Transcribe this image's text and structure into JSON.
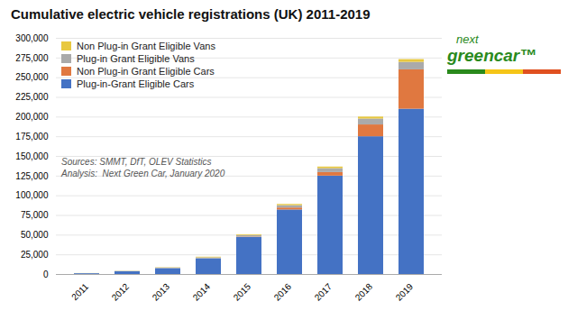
{
  "chart_data": {
    "type": "bar",
    "stacked": true,
    "title": "Cumulative electric vehicle registrations (UK) 2011-2019",
    "categories": [
      "2011",
      "2012",
      "2013",
      "2014",
      "2015",
      "2016",
      "2017",
      "2018",
      "2019"
    ],
    "series": [
      {
        "name": "Plug-in-Grant Eligible Cars",
        "color": "#4472C4",
        "values": [
          1000,
          3500,
          7500,
          20000,
          47000,
          82000,
          125000,
          175000,
          210000
        ]
      },
      {
        "name": "Non Plug-in Grant Eligible Cars",
        "color": "#E07840",
        "values": [
          0,
          0,
          0,
          0,
          500,
          2500,
          4500,
          15000,
          50000
        ]
      },
      {
        "name": "Plug-in Grant Eligible Vans",
        "color": "#AAAAAA",
        "values": [
          150,
          400,
          700,
          1200,
          2000,
          3000,
          5000,
          7500,
          9500
        ]
      },
      {
        "name": "Non Plug-in Grant Eligible Vans",
        "color": "#E8C840",
        "values": [
          100,
          200,
          400,
          800,
          1000,
          1500,
          2000,
          2500,
          3500
        ]
      }
    ],
    "ylim": [
      0,
      300000
    ],
    "yticks": [
      0,
      {
        "value": 25000,
        "label": "25,000"
      },
      {
        "value": 50000,
        "label": "50,000"
      },
      {
        "value": 75000,
        "label": "75,000"
      },
      {
        "value": 100000,
        "label": "100,000"
      },
      {
        "value": 125000,
        "label": "125,000"
      },
      {
        "value": 150000,
        "label": "150,000"
      },
      {
        "value": 175000,
        "label": "175,000"
      },
      {
        "value": 200000,
        "label": "200,000"
      },
      {
        "value": 225000,
        "label": "225,000"
      },
      {
        "value": 250000,
        "label": "250,000"
      },
      {
        "value": 275000,
        "label": "275,000"
      },
      {
        "value": 300000,
        "label": "300,000"
      }
    ],
    "grid": true,
    "legend": "upper left",
    "annotations": [
      "Sources: SMMT, DfT, OLEV Statistics\nAnalysis:  Next Green Car, January 2020",
      "next",
      "greencar™"
    ]
  }
}
